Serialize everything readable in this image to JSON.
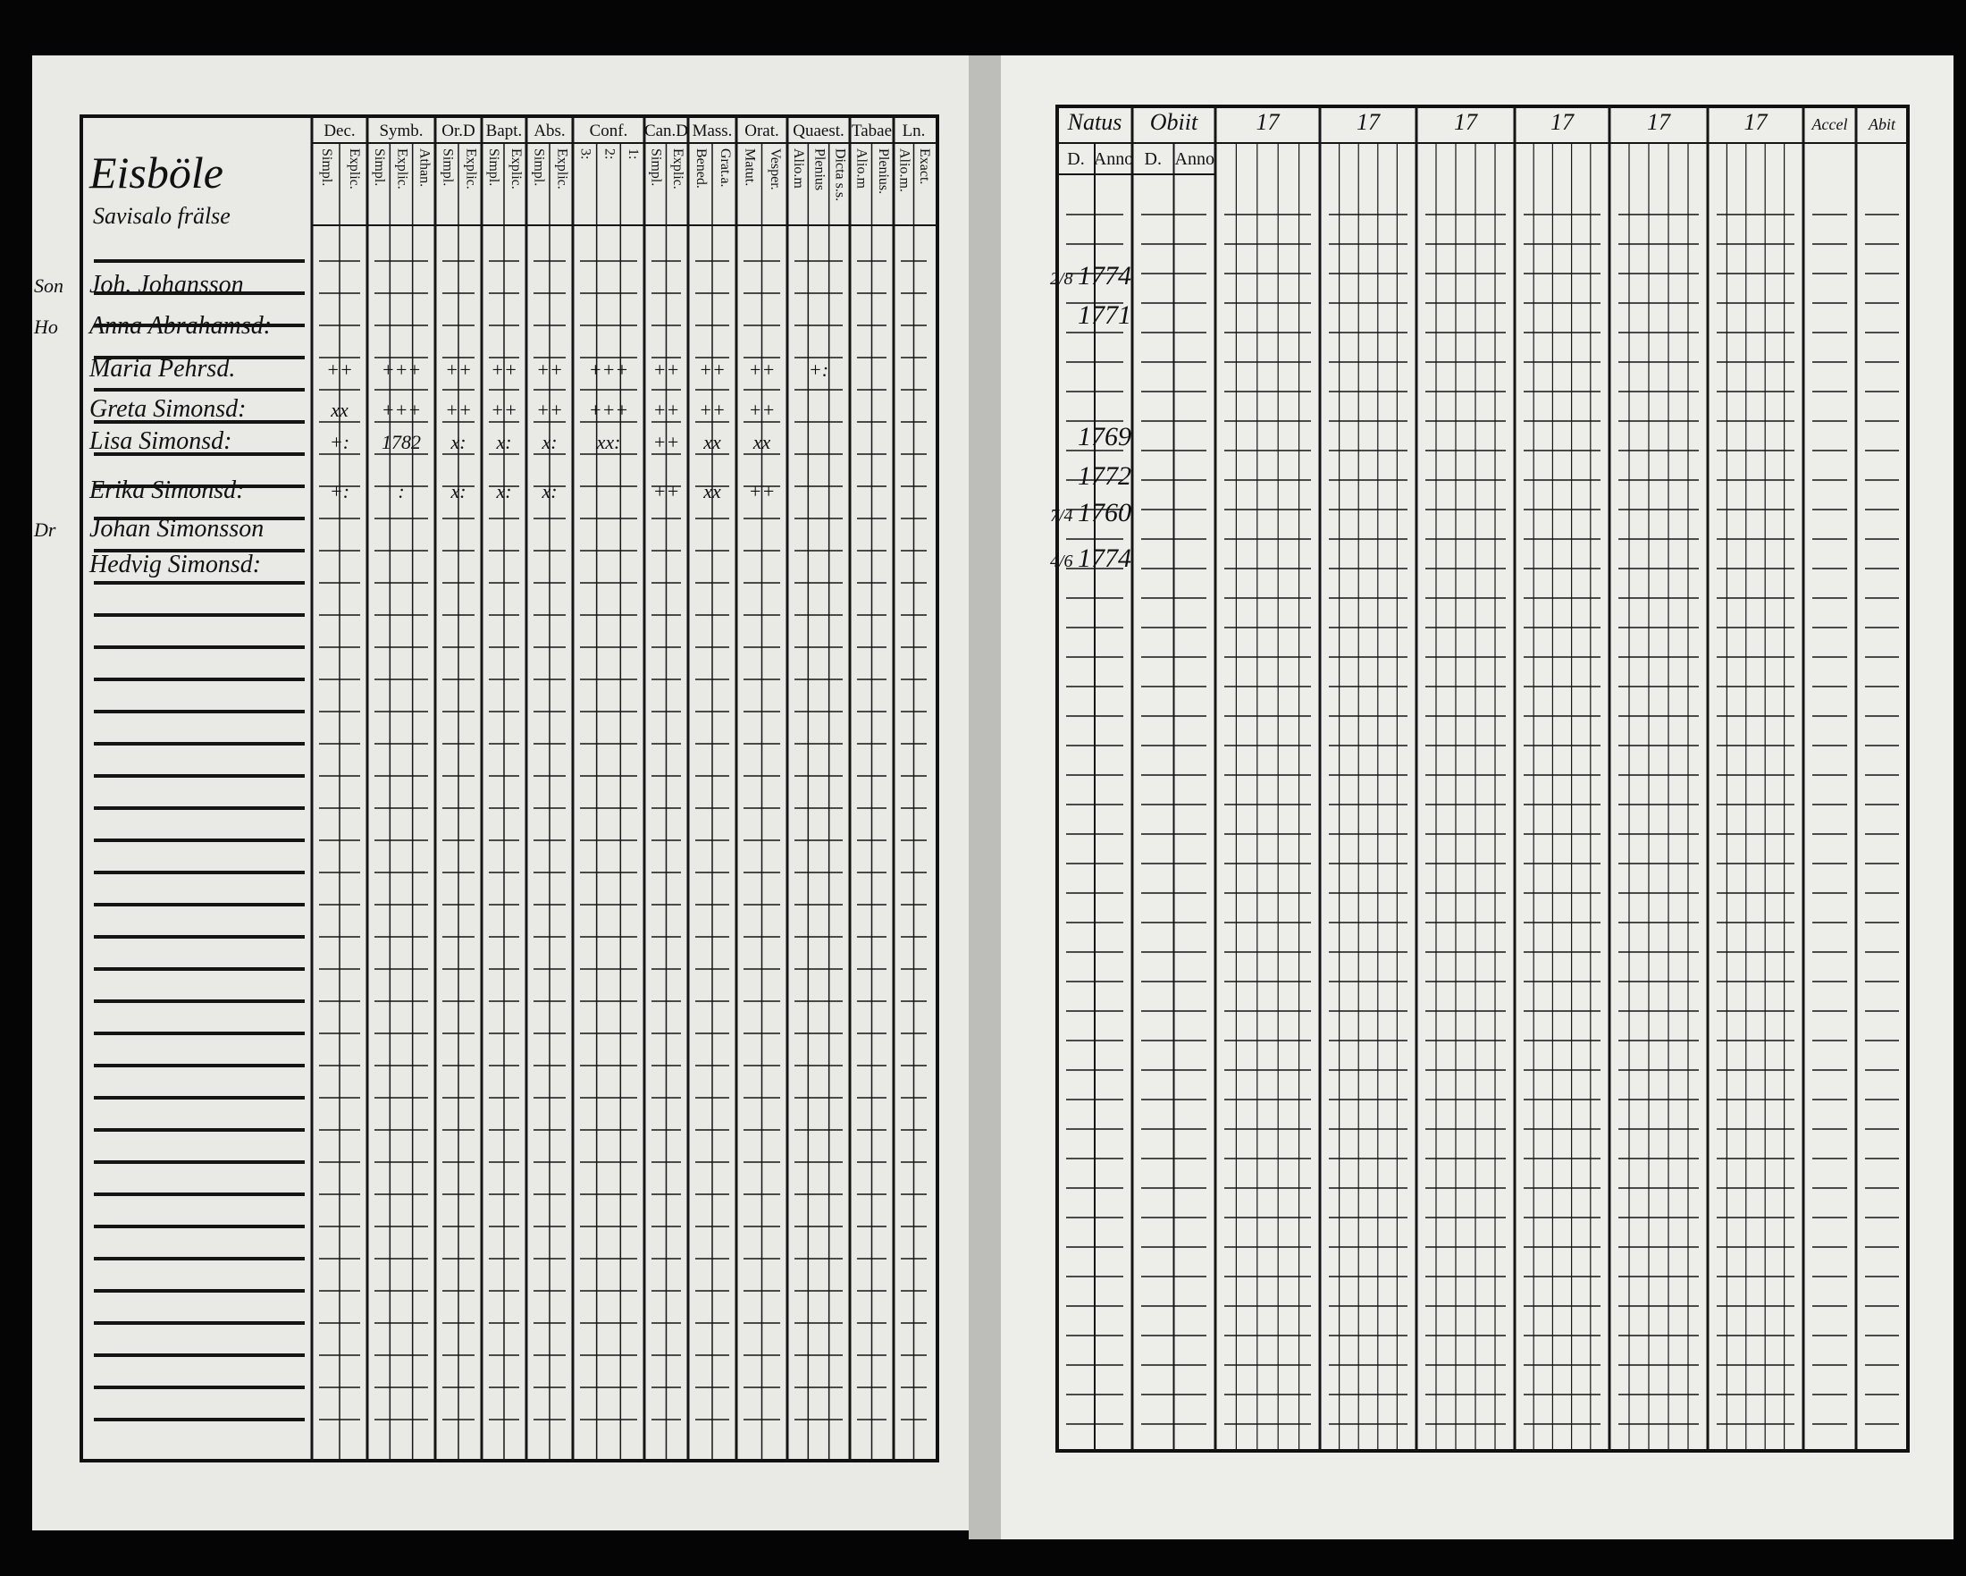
{
  "left_page": {
    "place": "Eisböle",
    "subtitle": "Savisalo frälse",
    "column_groups": [
      {
        "label": "Dec.",
        "sub": [
          "Simpl.",
          "Explic."
        ]
      },
      {
        "label": "Symb.",
        "sub": [
          "Simpl.",
          "Explic.",
          "Athan."
        ]
      },
      {
        "label": "Or.D",
        "sub": [
          "Simpl.",
          "Explic."
        ]
      },
      {
        "label": "Bapt.",
        "sub": [
          "Simpl.",
          "Explic."
        ]
      },
      {
        "label": "Abs.",
        "sub": [
          "Simpl.",
          "Explic."
        ]
      },
      {
        "label": "Conf.",
        "sub": [
          "3:",
          "2:",
          "1:"
        ]
      },
      {
        "label": "Can.D",
        "sub": [
          "Simpl.",
          "Explic."
        ]
      },
      {
        "label": "Mass.",
        "sub": [
          "Bened.",
          "Grat.a."
        ]
      },
      {
        "label": "Orat.",
        "sub": [
          "Matut.",
          "Vesper."
        ]
      },
      {
        "label": "Quaest.",
        "sub": [
          "Alio.m",
          "Plenius",
          "Dicta s.s."
        ]
      },
      {
        "label": "Tabae",
        "sub": [
          "Alio.m",
          "Plenius."
        ]
      },
      {
        "label": "Ln.",
        "sub": [
          "Alio.m.",
          "Exact."
        ]
      }
    ],
    "rows": [
      {
        "marker": "Son",
        "name": "Joh. Johansson"
      },
      {
        "marker": "Ho",
        "name": "Anna Abrahamsd:"
      },
      {
        "name": "Maria Pehrsd.",
        "marks": [
          "++",
          "+++",
          "++",
          "++",
          "++",
          "+++",
          "++",
          "++",
          "++",
          "+:"
        ]
      },
      {
        "name": "Greta Simonsd:",
        "marks": [
          "xx",
          "+++",
          "++",
          "++",
          "++",
          "+++",
          "++",
          "++",
          "++"
        ]
      },
      {
        "name": "Lisa Simonsd:",
        "marks": [
          "+:",
          "1782",
          "x:",
          "x:",
          "x:",
          "xx:",
          "++",
          "xx",
          "xx"
        ]
      },
      {
        "name": "Erika Simonsd:",
        "marks": [
          "+:",
          ":",
          "x:",
          "x:",
          "x:",
          null,
          "++",
          "xx",
          "++"
        ]
      },
      {
        "marker": "Dr",
        "name": "Johan Simonsson"
      },
      {
        "name": "Hedvig Simonsd:"
      }
    ]
  },
  "right_page": {
    "column_groups": [
      {
        "label": "Natus",
        "sub": [
          "D.",
          "Anno"
        ]
      },
      {
        "label": "Obiit",
        "sub": [
          "D.",
          "Anno"
        ]
      },
      {
        "label": "17"
      },
      {
        "label": "17"
      },
      {
        "label": "17"
      },
      {
        "label": "17"
      },
      {
        "label": "17"
      },
      {
        "label": "17"
      },
      {
        "label": "Accel"
      },
      {
        "label": "Abit"
      }
    ],
    "rows": [
      {
        "day": "2/8",
        "year": "1774"
      },
      {
        "year": "1771"
      },
      {
        "year": "1769"
      },
      {
        "year": "1772"
      },
      {
        "day": "7/4",
        "year": "1760"
      },
      {
        "day": "4/6",
        "year": "1774"
      }
    ]
  }
}
